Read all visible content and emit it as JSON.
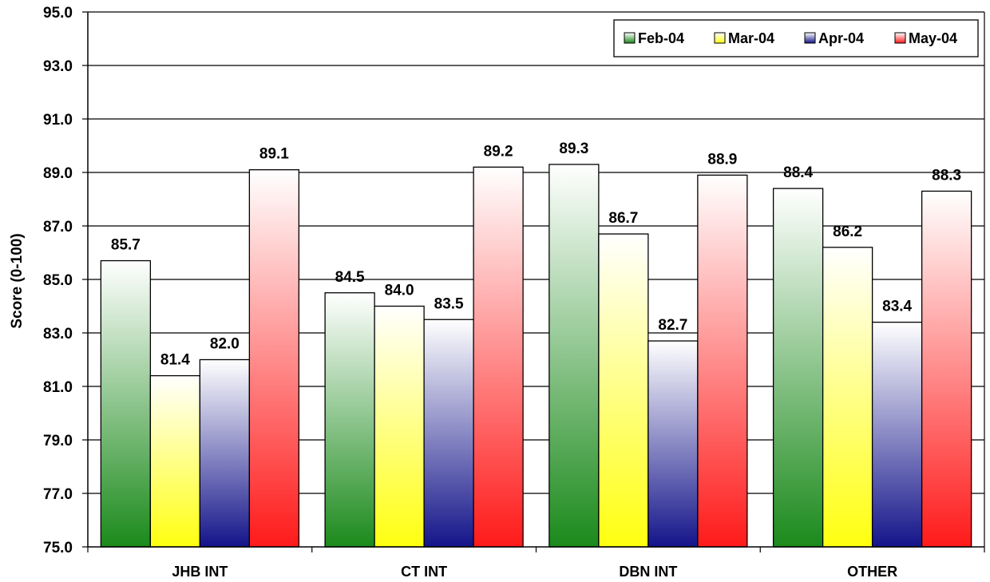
{
  "chart_data": {
    "type": "bar",
    "title": "",
    "xlabel": "",
    "ylabel": "Score (0-100)",
    "ylim": [
      75,
      95
    ],
    "yticks": [
      "75.0",
      "77.0",
      "79.0",
      "81.0",
      "83.0",
      "85.0",
      "87.0",
      "89.0",
      "91.0",
      "93.0",
      "95.0"
    ],
    "grid": true,
    "legend_position": "top-right",
    "categories": [
      "JHB INT",
      "CT INT",
      "DBN INT",
      "OTHER"
    ],
    "series": [
      {
        "name": "Feb-04",
        "values": [
          85.7,
          84.5,
          89.3,
          88.4
        ],
        "labels": [
          "85.7",
          "84.5",
          "89.3",
          "88.4"
        ],
        "color_top": "#ffffff",
        "color_bottom": "#1b8a1b"
      },
      {
        "name": "Mar-04",
        "values": [
          81.4,
          84.0,
          86.7,
          86.2
        ],
        "labels": [
          "81.4",
          "84.0",
          "86.7",
          "86.2"
        ],
        "color_top": "#ffffff",
        "color_bottom": "#ffff10"
      },
      {
        "name": "Apr-04",
        "values": [
          82.0,
          83.5,
          82.7,
          83.4
        ],
        "labels": [
          "82.0",
          "83.5",
          "82.7",
          "83.4"
        ],
        "color_top": "#ffffff",
        "color_bottom": "#14148a"
      },
      {
        "name": "May-04",
        "values": [
          89.1,
          89.2,
          88.9,
          88.3
        ],
        "labels": [
          "89.1",
          "89.2",
          "88.9",
          "88.3"
        ],
        "color_top": "#ffffff",
        "color_bottom": "#ff1a1a"
      }
    ]
  }
}
